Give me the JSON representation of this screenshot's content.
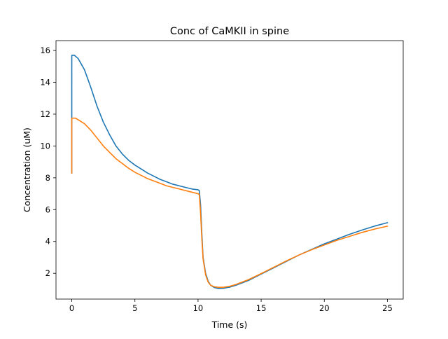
{
  "chart_data": {
    "type": "line",
    "title": "Conc of CaMKII in spine",
    "xlabel": "Time (s)",
    "ylabel": "Concentration (uM)",
    "xlim": [
      -1.25,
      26.25
    ],
    "ylim": [
      0.38,
      16.62
    ],
    "xticks": [
      0,
      5,
      10,
      15,
      20,
      25
    ],
    "xtick_labels": [
      "0",
      "5",
      "10",
      "15",
      "20",
      "25"
    ],
    "yticks": [
      2,
      4,
      6,
      8,
      10,
      12,
      14,
      16
    ],
    "ytick_labels": [
      "2",
      "4",
      "6",
      "8",
      "10",
      "12",
      "14",
      "16"
    ],
    "grid": false,
    "legend": "none",
    "series": [
      {
        "color": "#1f77b4",
        "points": [
          [
            0,
            8.3
          ],
          [
            0,
            15.7
          ],
          [
            0.2,
            15.7
          ],
          [
            0.5,
            15.5
          ],
          [
            1,
            14.8
          ],
          [
            1.5,
            13.7
          ],
          [
            2,
            12.5
          ],
          [
            2.5,
            11.5
          ],
          [
            3,
            10.7
          ],
          [
            3.5,
            10.0
          ],
          [
            4,
            9.5
          ],
          [
            4.5,
            9.1
          ],
          [
            5,
            8.8
          ],
          [
            5.5,
            8.55
          ],
          [
            6,
            8.3
          ],
          [
            6.5,
            8.1
          ],
          [
            7,
            7.9
          ],
          [
            7.5,
            7.75
          ],
          [
            8,
            7.6
          ],
          [
            8.5,
            7.5
          ],
          [
            9,
            7.4
          ],
          [
            9.5,
            7.3
          ],
          [
            10,
            7.25
          ],
          [
            10.1,
            7.2
          ],
          [
            10.2,
            6.3
          ],
          [
            10.3,
            4.5
          ],
          [
            10.4,
            3.0
          ],
          [
            10.6,
            2.0
          ],
          [
            10.8,
            1.5
          ],
          [
            11,
            1.25
          ],
          [
            11.3,
            1.1
          ],
          [
            11.6,
            1.05
          ],
          [
            12,
            1.06
          ],
          [
            12.5,
            1.13
          ],
          [
            13,
            1.25
          ],
          [
            14,
            1.55
          ],
          [
            15,
            1.95
          ],
          [
            16,
            2.35
          ],
          [
            17,
            2.75
          ],
          [
            18,
            3.15
          ],
          [
            19,
            3.5
          ],
          [
            20,
            3.85
          ],
          [
            21,
            4.15
          ],
          [
            22,
            4.45
          ],
          [
            23,
            4.72
          ],
          [
            24,
            4.97
          ],
          [
            25,
            5.18
          ]
        ]
      },
      {
        "color": "#ff7f0e",
        "points": [
          [
            0,
            8.3
          ],
          [
            0,
            11.75
          ],
          [
            0.3,
            11.75
          ],
          [
            0.7,
            11.55
          ],
          [
            1,
            11.4
          ],
          [
            1.5,
            11.0
          ],
          [
            2,
            10.5
          ],
          [
            2.5,
            10.0
          ],
          [
            3,
            9.6
          ],
          [
            3.5,
            9.2
          ],
          [
            4,
            8.9
          ],
          [
            4.5,
            8.6
          ],
          [
            5,
            8.35
          ],
          [
            5.5,
            8.15
          ],
          [
            6,
            7.95
          ],
          [
            6.5,
            7.8
          ],
          [
            7,
            7.65
          ],
          [
            7.5,
            7.5
          ],
          [
            8,
            7.4
          ],
          [
            8.5,
            7.3
          ],
          [
            9,
            7.2
          ],
          [
            9.5,
            7.1
          ],
          [
            10,
            7.0
          ],
          [
            10.1,
            6.95
          ],
          [
            10.2,
            5.8
          ],
          [
            10.3,
            4.2
          ],
          [
            10.4,
            2.9
          ],
          [
            10.6,
            1.9
          ],
          [
            10.8,
            1.45
          ],
          [
            11,
            1.25
          ],
          [
            11.3,
            1.15
          ],
          [
            11.6,
            1.12
          ],
          [
            12,
            1.12
          ],
          [
            12.5,
            1.18
          ],
          [
            13,
            1.3
          ],
          [
            14,
            1.6
          ],
          [
            15,
            1.98
          ],
          [
            16,
            2.38
          ],
          [
            17,
            2.78
          ],
          [
            18,
            3.15
          ],
          [
            19,
            3.48
          ],
          [
            20,
            3.78
          ],
          [
            21,
            4.07
          ],
          [
            22,
            4.32
          ],
          [
            23,
            4.57
          ],
          [
            24,
            4.78
          ],
          [
            25,
            4.96
          ]
        ]
      }
    ]
  }
}
